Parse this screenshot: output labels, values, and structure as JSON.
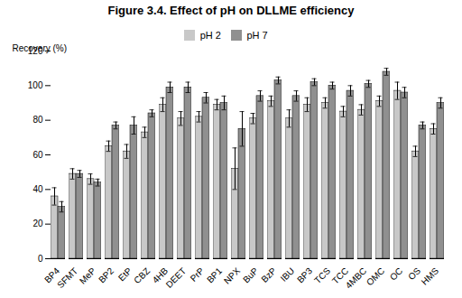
{
  "chart_data": {
    "type": "bar",
    "title": "Figure 3.4. Effect of pH on DLLME efficiency",
    "categories": [
      "BP4",
      "SFMT",
      "MeP",
      "BP2",
      "EtP",
      "CBZ",
      "4HB",
      "DEET",
      "PrP",
      "BP1",
      "NPX",
      "BuP",
      "BzP",
      "IBU",
      "BP3",
      "TCS",
      "TCC",
      "4MBC",
      "OMC",
      "OC",
      "OS",
      "HMS"
    ],
    "series": [
      {
        "name": "pH 2",
        "color": "#c8c8c8",
        "values": [
          36,
          49,
          46,
          65,
          62,
          73,
          89,
          81,
          82,
          89,
          52,
          81,
          91,
          81,
          89,
          90,
          85,
          86,
          91,
          97,
          62,
          75
        ],
        "errors": [
          5,
          3,
          3,
          3,
          4,
          3,
          4,
          4,
          3,
          3,
          12,
          3,
          3,
          5,
          4,
          3,
          3,
          3,
          3,
          5,
          3,
          3
        ]
      },
      {
        "name": "pH 7",
        "color": "#909090",
        "values": [
          30,
          49,
          44,
          77,
          77,
          84,
          99,
          99,
          93,
          90,
          75,
          94,
          103,
          94,
          102,
          100,
          97,
          101,
          108,
          96,
          77,
          90
        ],
        "errors": [
          3,
          2,
          2,
          2,
          5,
          2,
          3,
          3,
          3,
          4,
          10,
          3,
          2,
          3,
          2,
          2,
          3,
          2,
          2,
          3,
          2,
          3
        ]
      }
    ],
    "ylabel": "Recovery (%)",
    "ylim": [
      0,
      120
    ],
    "yticks": [
      0,
      20,
      40,
      60,
      80,
      100,
      120
    ],
    "grid": false,
    "legend": "top"
  }
}
